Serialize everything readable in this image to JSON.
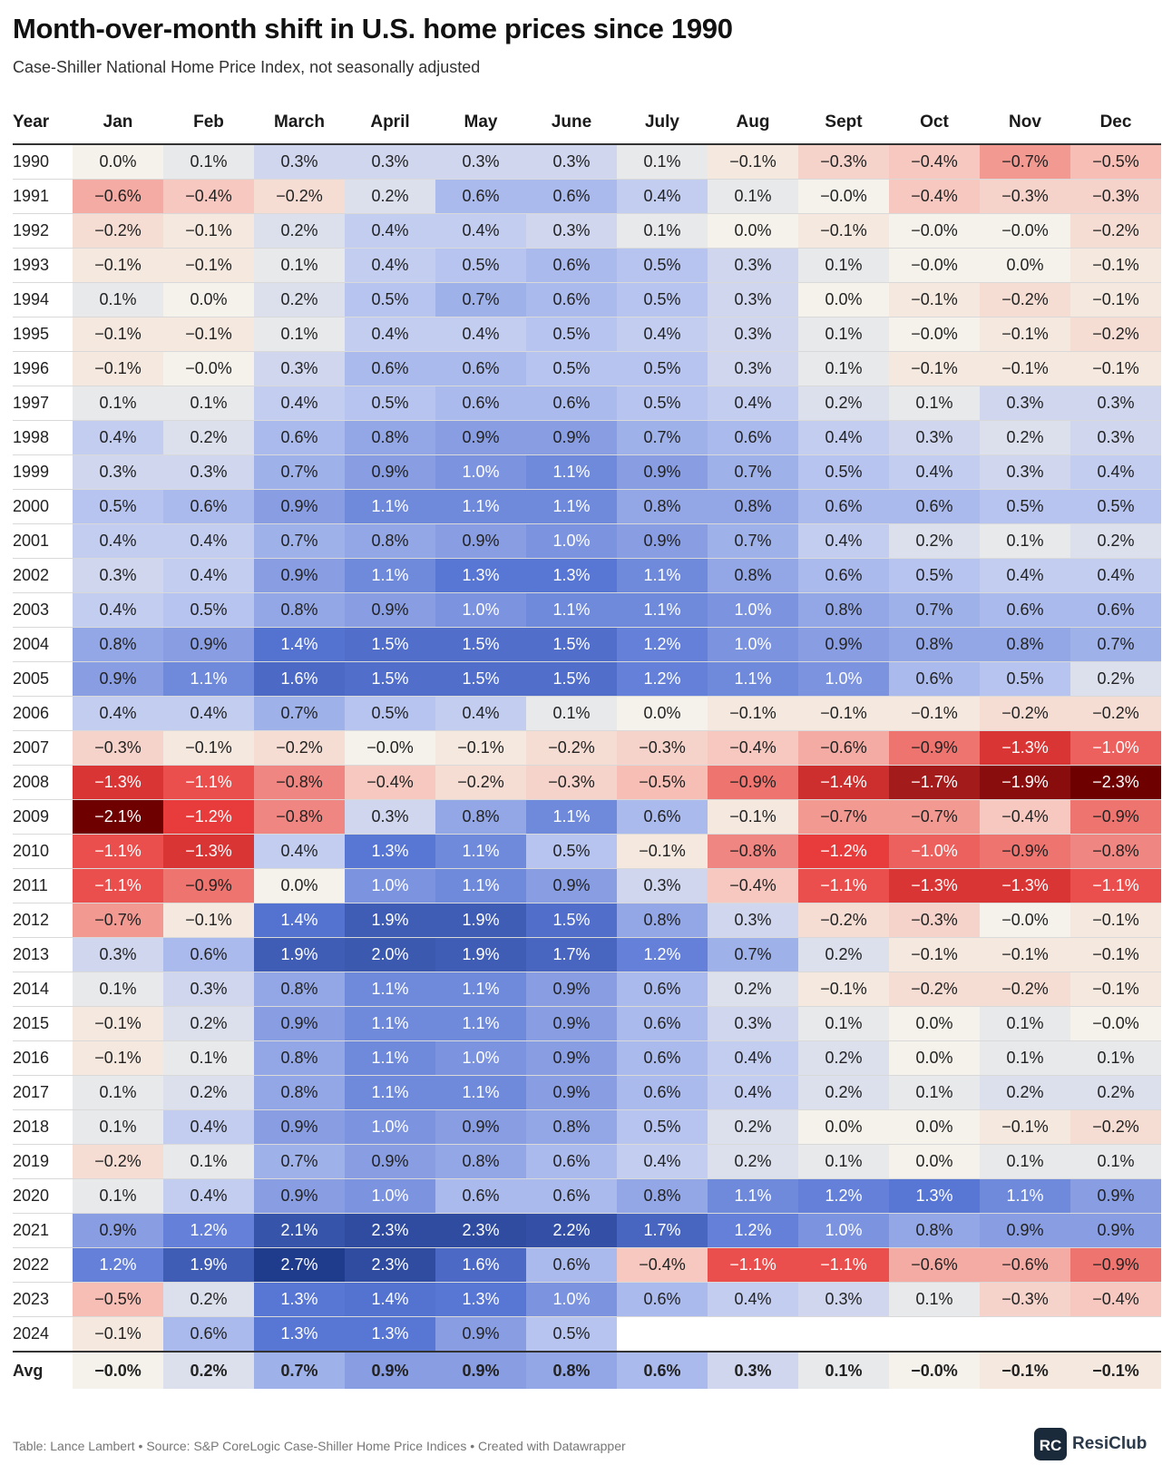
{
  "title": "Month-over-month shift in U.S. home prices since 1990",
  "subtitle": "Case-Shiller National Home Price Index, not seasonally adjusted",
  "footer": "Table: Lance Lambert • Source: S&P CoreLogic Case-Shiller Home Price Indices • Created with Datawrapper",
  "brand": {
    "name": "ResiClub",
    "logo_letters": "RC"
  },
  "colors": {
    "positive": "#1f3b8c",
    "negative": "#c80c0c",
    "deep_negative": "#6e0000",
    "neutral": "#f4f2ea"
  },
  "chart_data": {
    "type": "table",
    "title": "Month-over-month shift in U.S. home prices since 1990",
    "subtitle": "Case-Shiller National Home Price Index, not seasonally adjusted",
    "year_header": "Year",
    "columns": [
      "Jan",
      "Feb",
      "March",
      "April",
      "May",
      "June",
      "July",
      "Aug",
      "Sept",
      "Oct",
      "Nov",
      "Dec"
    ],
    "rows": [
      {
        "year": "1990",
        "values": [
          "0.0%",
          "0.1%",
          "0.3%",
          "0.3%",
          "0.3%",
          "0.3%",
          "0.1%",
          "−0.1%",
          "−0.3%",
          "−0.4%",
          "−0.7%",
          "−0.5%"
        ]
      },
      {
        "year": "1991",
        "values": [
          "−0.6%",
          "−0.4%",
          "−0.2%",
          "0.2%",
          "0.6%",
          "0.6%",
          "0.4%",
          "0.1%",
          "−0.0%",
          "−0.4%",
          "−0.3%",
          "−0.3%"
        ]
      },
      {
        "year": "1992",
        "values": [
          "−0.2%",
          "−0.1%",
          "0.2%",
          "0.4%",
          "0.4%",
          "0.3%",
          "0.1%",
          "0.0%",
          "−0.1%",
          "−0.0%",
          "−0.0%",
          "−0.2%"
        ]
      },
      {
        "year": "1993",
        "values": [
          "−0.1%",
          "−0.1%",
          "0.1%",
          "0.4%",
          "0.5%",
          "0.6%",
          "0.5%",
          "0.3%",
          "0.1%",
          "−0.0%",
          "0.0%",
          "−0.1%"
        ]
      },
      {
        "year": "1994",
        "values": [
          "0.1%",
          "0.0%",
          "0.2%",
          "0.5%",
          "0.7%",
          "0.6%",
          "0.5%",
          "0.3%",
          "0.0%",
          "−0.1%",
          "−0.2%",
          "−0.1%"
        ]
      },
      {
        "year": "1995",
        "values": [
          "−0.1%",
          "−0.1%",
          "0.1%",
          "0.4%",
          "0.4%",
          "0.5%",
          "0.4%",
          "0.3%",
          "0.1%",
          "−0.0%",
          "−0.1%",
          "−0.2%"
        ]
      },
      {
        "year": "1996",
        "values": [
          "−0.1%",
          "−0.0%",
          "0.3%",
          "0.6%",
          "0.6%",
          "0.5%",
          "0.5%",
          "0.3%",
          "0.1%",
          "−0.1%",
          "−0.1%",
          "−0.1%"
        ]
      },
      {
        "year": "1997",
        "values": [
          "0.1%",
          "0.1%",
          "0.4%",
          "0.5%",
          "0.6%",
          "0.6%",
          "0.5%",
          "0.4%",
          "0.2%",
          "0.1%",
          "0.3%",
          "0.3%"
        ]
      },
      {
        "year": "1998",
        "values": [
          "0.4%",
          "0.2%",
          "0.6%",
          "0.8%",
          "0.9%",
          "0.9%",
          "0.7%",
          "0.6%",
          "0.4%",
          "0.3%",
          "0.2%",
          "0.3%"
        ]
      },
      {
        "year": "1999",
        "values": [
          "0.3%",
          "0.3%",
          "0.7%",
          "0.9%",
          "1.0%",
          "1.1%",
          "0.9%",
          "0.7%",
          "0.5%",
          "0.4%",
          "0.3%",
          "0.4%"
        ]
      },
      {
        "year": "2000",
        "values": [
          "0.5%",
          "0.6%",
          "0.9%",
          "1.1%",
          "1.1%",
          "1.1%",
          "0.8%",
          "0.8%",
          "0.6%",
          "0.6%",
          "0.5%",
          "0.5%"
        ]
      },
      {
        "year": "2001",
        "values": [
          "0.4%",
          "0.4%",
          "0.7%",
          "0.8%",
          "0.9%",
          "1.0%",
          "0.9%",
          "0.7%",
          "0.4%",
          "0.2%",
          "0.1%",
          "0.2%"
        ]
      },
      {
        "year": "2002",
        "values": [
          "0.3%",
          "0.4%",
          "0.9%",
          "1.1%",
          "1.3%",
          "1.3%",
          "1.1%",
          "0.8%",
          "0.6%",
          "0.5%",
          "0.4%",
          "0.4%"
        ]
      },
      {
        "year": "2003",
        "values": [
          "0.4%",
          "0.5%",
          "0.8%",
          "0.9%",
          "1.0%",
          "1.1%",
          "1.1%",
          "1.0%",
          "0.8%",
          "0.7%",
          "0.6%",
          "0.6%"
        ]
      },
      {
        "year": "2004",
        "values": [
          "0.8%",
          "0.9%",
          "1.4%",
          "1.5%",
          "1.5%",
          "1.5%",
          "1.2%",
          "1.0%",
          "0.9%",
          "0.8%",
          "0.8%",
          "0.7%"
        ]
      },
      {
        "year": "2005",
        "values": [
          "0.9%",
          "1.1%",
          "1.6%",
          "1.5%",
          "1.5%",
          "1.5%",
          "1.2%",
          "1.1%",
          "1.0%",
          "0.6%",
          "0.5%",
          "0.2%"
        ]
      },
      {
        "year": "2006",
        "values": [
          "0.4%",
          "0.4%",
          "0.7%",
          "0.5%",
          "0.4%",
          "0.1%",
          "0.0%",
          "−0.1%",
          "−0.1%",
          "−0.1%",
          "−0.2%",
          "−0.2%"
        ]
      },
      {
        "year": "2007",
        "values": [
          "−0.3%",
          "−0.1%",
          "−0.2%",
          "−0.0%",
          "−0.1%",
          "−0.2%",
          "−0.3%",
          "−0.4%",
          "−0.6%",
          "−0.9%",
          "−1.3%",
          "−1.0%"
        ]
      },
      {
        "year": "2008",
        "values": [
          "−1.3%",
          "−1.1%",
          "−0.8%",
          "−0.4%",
          "−0.2%",
          "−0.3%",
          "−0.5%",
          "−0.9%",
          "−1.4%",
          "−1.7%",
          "−1.9%",
          "−2.3%"
        ]
      },
      {
        "year": "2009",
        "values": [
          "−2.1%",
          "−1.2%",
          "−0.8%",
          "0.3%",
          "0.8%",
          "1.1%",
          "0.6%",
          "−0.1%",
          "−0.7%",
          "−0.7%",
          "−0.4%",
          "−0.9%"
        ]
      },
      {
        "year": "2010",
        "values": [
          "−1.1%",
          "−1.3%",
          "0.4%",
          "1.3%",
          "1.1%",
          "0.5%",
          "−0.1%",
          "−0.8%",
          "−1.2%",
          "−1.0%",
          "−0.9%",
          "−0.8%"
        ]
      },
      {
        "year": "2011",
        "values": [
          "−1.1%",
          "−0.9%",
          "0.0%",
          "1.0%",
          "1.1%",
          "0.9%",
          "0.3%",
          "−0.4%",
          "−1.1%",
          "−1.3%",
          "−1.3%",
          "−1.1%"
        ]
      },
      {
        "year": "2012",
        "values": [
          "−0.7%",
          "−0.1%",
          "1.4%",
          "1.9%",
          "1.9%",
          "1.5%",
          "0.8%",
          "0.3%",
          "−0.2%",
          "−0.3%",
          "−0.0%",
          "−0.1%"
        ]
      },
      {
        "year": "2013",
        "values": [
          "0.3%",
          "0.6%",
          "1.9%",
          "2.0%",
          "1.9%",
          "1.7%",
          "1.2%",
          "0.7%",
          "0.2%",
          "−0.1%",
          "−0.1%",
          "−0.1%"
        ]
      },
      {
        "year": "2014",
        "values": [
          "0.1%",
          "0.3%",
          "0.8%",
          "1.1%",
          "1.1%",
          "0.9%",
          "0.6%",
          "0.2%",
          "−0.1%",
          "−0.2%",
          "−0.2%",
          "−0.1%"
        ]
      },
      {
        "year": "2015",
        "values": [
          "−0.1%",
          "0.2%",
          "0.9%",
          "1.1%",
          "1.1%",
          "0.9%",
          "0.6%",
          "0.3%",
          "0.1%",
          "0.0%",
          "0.1%",
          "−0.0%"
        ]
      },
      {
        "year": "2016",
        "values": [
          "−0.1%",
          "0.1%",
          "0.8%",
          "1.1%",
          "1.0%",
          "0.9%",
          "0.6%",
          "0.4%",
          "0.2%",
          "0.0%",
          "0.1%",
          "0.1%"
        ]
      },
      {
        "year": "2017",
        "values": [
          "0.1%",
          "0.2%",
          "0.8%",
          "1.1%",
          "1.1%",
          "0.9%",
          "0.6%",
          "0.4%",
          "0.2%",
          "0.1%",
          "0.2%",
          "0.2%"
        ]
      },
      {
        "year": "2018",
        "values": [
          "0.1%",
          "0.4%",
          "0.9%",
          "1.0%",
          "0.9%",
          "0.8%",
          "0.5%",
          "0.2%",
          "0.0%",
          "0.0%",
          "−0.1%",
          "−0.2%"
        ]
      },
      {
        "year": "2019",
        "values": [
          "−0.2%",
          "0.1%",
          "0.7%",
          "0.9%",
          "0.8%",
          "0.6%",
          "0.4%",
          "0.2%",
          "0.1%",
          "0.0%",
          "0.1%",
          "0.1%"
        ]
      },
      {
        "year": "2020",
        "values": [
          "0.1%",
          "0.4%",
          "0.9%",
          "1.0%",
          "0.6%",
          "0.6%",
          "0.8%",
          "1.1%",
          "1.2%",
          "1.3%",
          "1.1%",
          "0.9%"
        ]
      },
      {
        "year": "2021",
        "values": [
          "0.9%",
          "1.2%",
          "2.1%",
          "2.3%",
          "2.3%",
          "2.2%",
          "1.7%",
          "1.2%",
          "1.0%",
          "0.8%",
          "0.9%",
          "0.9%"
        ]
      },
      {
        "year": "2022",
        "values": [
          "1.2%",
          "1.9%",
          "2.7%",
          "2.3%",
          "1.6%",
          "0.6%",
          "−0.4%",
          "−1.1%",
          "−1.1%",
          "−0.6%",
          "−0.6%",
          "−0.9%"
        ]
      },
      {
        "year": "2023",
        "values": [
          "−0.5%",
          "0.2%",
          "1.3%",
          "1.4%",
          "1.3%",
          "1.0%",
          "0.6%",
          "0.4%",
          "0.3%",
          "0.1%",
          "−0.3%",
          "−0.4%"
        ]
      },
      {
        "year": "2024",
        "values": [
          "−0.1%",
          "0.6%",
          "1.3%",
          "1.3%",
          "0.9%",
          "0.5%",
          "",
          "",
          "",
          "",
          "",
          ""
        ]
      }
    ],
    "average": {
      "label": "Avg",
      "values": [
        "−0.0%",
        "0.2%",
        "0.7%",
        "0.9%",
        "0.9%",
        "0.8%",
        "0.6%",
        "0.3%",
        "0.1%",
        "−0.0%",
        "−0.1%",
        "−0.1%"
      ]
    }
  }
}
